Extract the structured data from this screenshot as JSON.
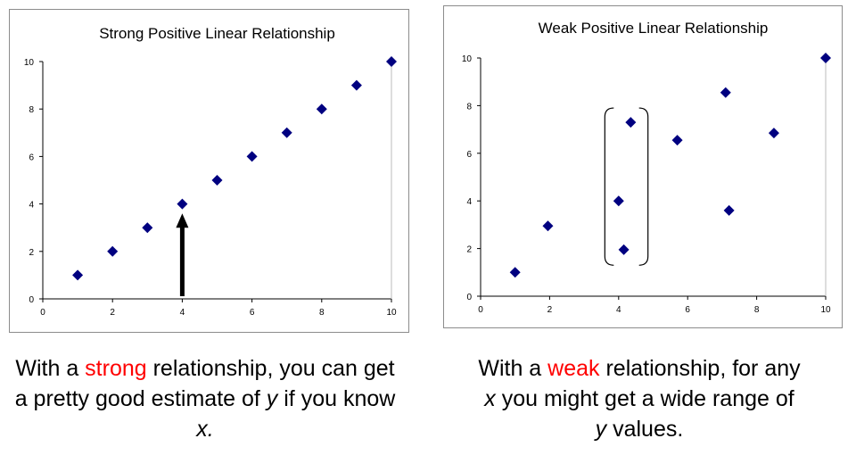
{
  "chart_data": [
    {
      "type": "scatter",
      "title": "Strong Positive Linear Relationship",
      "xlim": [
        0,
        10
      ],
      "ylim": [
        0,
        10
      ],
      "x_ticks": [
        0,
        2,
        4,
        6,
        8,
        10
      ],
      "y_ticks": [
        0,
        2,
        4,
        6,
        8,
        10
      ],
      "grid": false,
      "marker_color": "#000080",
      "points": [
        {
          "x": 1,
          "y": 1
        },
        {
          "x": 2,
          "y": 2
        },
        {
          "x": 3,
          "y": 3
        },
        {
          "x": 4,
          "y": 4
        },
        {
          "x": 5,
          "y": 5
        },
        {
          "x": 6,
          "y": 6
        },
        {
          "x": 7,
          "y": 7
        },
        {
          "x": 8,
          "y": 8
        },
        {
          "x": 9,
          "y": 9
        },
        {
          "x": 10,
          "y": 10
        }
      ],
      "annotations": [
        {
          "type": "arrow",
          "from": {
            "x": 4,
            "y": 0
          },
          "to": {
            "x": 4,
            "y": 3.6
          },
          "color": "#000000"
        }
      ]
    },
    {
      "type": "scatter",
      "title": "Weak Positive Linear Relationship",
      "xlim": [
        0,
        10
      ],
      "ylim": [
        0,
        10
      ],
      "x_ticks": [
        0,
        2,
        4,
        6,
        8,
        10
      ],
      "y_ticks": [
        0,
        2,
        4,
        6,
        8,
        10
      ],
      "grid": false,
      "marker_color": "#000080",
      "points": [
        {
          "x": 1,
          "y": 1
        },
        {
          "x": 1.95,
          "y": 2.95
        },
        {
          "x": 4,
          "y": 4
        },
        {
          "x": 4.15,
          "y": 1.95
        },
        {
          "x": 4.35,
          "y": 7.3
        },
        {
          "x": 5.7,
          "y": 6.55
        },
        {
          "x": 7.1,
          "y": 8.55
        },
        {
          "x": 7.2,
          "y": 3.6
        },
        {
          "x": 8.5,
          "y": 6.85
        },
        {
          "x": 10,
          "y": 10
        }
      ],
      "annotations": [
        {
          "type": "bracket",
          "x_range": [
            3.6,
            4.85
          ],
          "y_range": [
            1.3,
            7.9
          ],
          "color": "#000000"
        }
      ]
    }
  ],
  "captions": {
    "left": {
      "p1": "With a ",
      "highlight": "strong",
      "p2": " relationship, you can get a pretty good estimate of ",
      "v1": "y",
      "p3": " if you know ",
      "v2": "x.",
      "highlight_color": "#ff0000"
    },
    "right": {
      "p1": "With a ",
      "highlight": "weak",
      "p2": " relationship, for any ",
      "v1": "x",
      "p3": " you might get a wide range of ",
      "v2": "y",
      "p4": " values.",
      "highlight_color": "#ff0000"
    }
  }
}
